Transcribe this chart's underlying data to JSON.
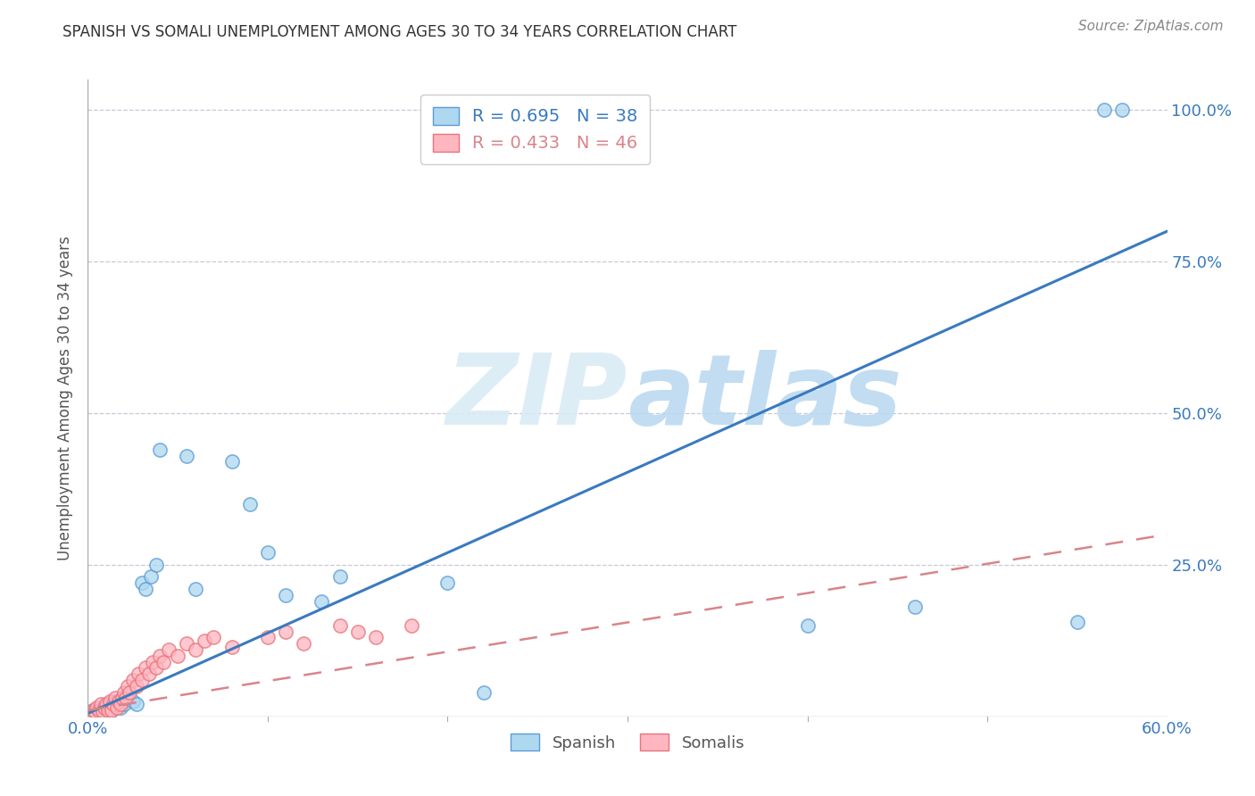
{
  "title": "SPANISH VS SOMALI UNEMPLOYMENT AMONG AGES 30 TO 34 YEARS CORRELATION CHART",
  "source": "Source: ZipAtlas.com",
  "ylabel": "Unemployment Among Ages 30 to 34 years",
  "xlim": [
    0.0,
    0.6
  ],
  "ylim": [
    0.0,
    1.05
  ],
  "xticks": [
    0.0,
    0.1,
    0.2,
    0.3,
    0.4,
    0.5,
    0.6
  ],
  "xticklabels": [
    "0.0%",
    "",
    "",
    "",
    "",
    "",
    "60.0%"
  ],
  "yticks": [
    0.0,
    0.25,
    0.5,
    0.75,
    1.0
  ],
  "yticklabels": [
    "",
    "25.0%",
    "50.0%",
    "75.0%",
    "100.0%"
  ],
  "spanish_R": 0.695,
  "spanish_N": 38,
  "somali_R": 0.433,
  "somali_N": 46,
  "spanish_color": "#add8f0",
  "somali_color": "#ffb6c1",
  "spanish_edge_color": "#5b9bd5",
  "somali_edge_color": "#e8737a",
  "spanish_line_color": "#3a7abf",
  "somali_line_color": "#d9848a",
  "background_color": "#ffffff",
  "watermark_color": "#d8eaf5",
  "spanish_x": [
    0.003,
    0.005,
    0.006,
    0.007,
    0.008,
    0.009,
    0.01,
    0.011,
    0.012,
    0.013,
    0.015,
    0.016,
    0.018,
    0.019,
    0.02,
    0.022,
    0.025,
    0.027,
    0.03,
    0.032,
    0.035,
    0.038,
    0.04,
    0.055,
    0.06,
    0.08,
    0.09,
    0.1,
    0.11,
    0.13,
    0.14,
    0.2,
    0.22,
    0.4,
    0.46,
    0.55,
    0.565,
    0.575
  ],
  "spanish_y": [
    0.01,
    0.005,
    0.008,
    0.01,
    0.015,
    0.01,
    0.02,
    0.015,
    0.02,
    0.01,
    0.025,
    0.02,
    0.015,
    0.025,
    0.02,
    0.03,
    0.025,
    0.02,
    0.22,
    0.21,
    0.23,
    0.25,
    0.44,
    0.43,
    0.21,
    0.42,
    0.35,
    0.27,
    0.2,
    0.19,
    0.23,
    0.22,
    0.04,
    0.15,
    0.18,
    0.155,
    1.0,
    1.0
  ],
  "somali_x": [
    0.002,
    0.003,
    0.004,
    0.005,
    0.006,
    0.007,
    0.008,
    0.009,
    0.01,
    0.011,
    0.012,
    0.013,
    0.014,
    0.015,
    0.016,
    0.017,
    0.018,
    0.019,
    0.02,
    0.021,
    0.022,
    0.023,
    0.025,
    0.027,
    0.028,
    0.03,
    0.032,
    0.034,
    0.036,
    0.038,
    0.04,
    0.042,
    0.045,
    0.05,
    0.055,
    0.06,
    0.065,
    0.07,
    0.08,
    0.1,
    0.11,
    0.12,
    0.14,
    0.15,
    0.16,
    0.18
  ],
  "somali_y": [
    0.005,
    0.01,
    0.008,
    0.015,
    0.01,
    0.02,
    0.008,
    0.015,
    0.02,
    0.01,
    0.025,
    0.01,
    0.02,
    0.03,
    0.015,
    0.025,
    0.02,
    0.03,
    0.04,
    0.03,
    0.05,
    0.04,
    0.06,
    0.05,
    0.07,
    0.06,
    0.08,
    0.07,
    0.09,
    0.08,
    0.1,
    0.09,
    0.11,
    0.1,
    0.12,
    0.11,
    0.125,
    0.13,
    0.115,
    0.13,
    0.14,
    0.12,
    0.15,
    0.14,
    0.13,
    0.15
  ],
  "spanish_line_x0": 0.0,
  "spanish_line_y0": 0.005,
  "spanish_line_x1": 0.6,
  "spanish_line_y1": 0.8,
  "somali_line_x0": 0.0,
  "somali_line_y0": 0.01,
  "somali_line_x1": 0.6,
  "somali_line_y1": 0.3
}
